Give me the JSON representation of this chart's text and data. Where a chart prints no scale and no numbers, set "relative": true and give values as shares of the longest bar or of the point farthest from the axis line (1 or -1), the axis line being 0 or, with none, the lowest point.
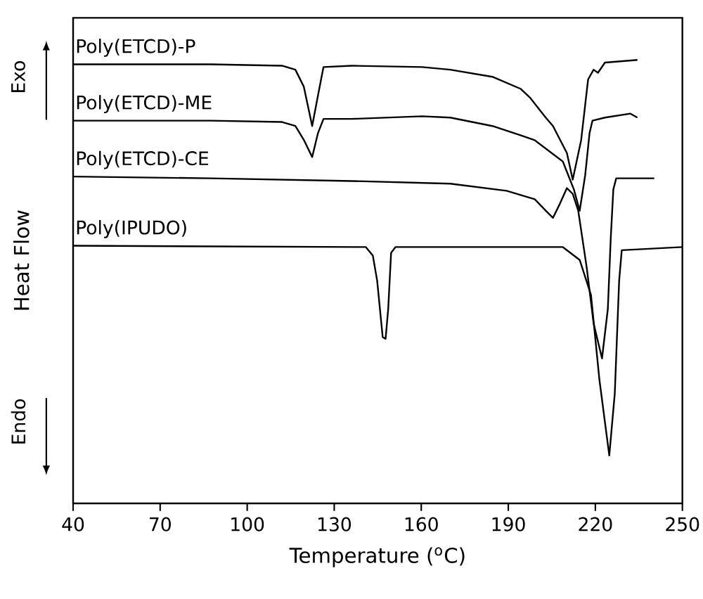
{
  "chart_data": {
    "type": "line",
    "xlabel": "Temperature ($^{o}$C)",
    "ylabel": "Heat Flow",
    "relative": true,
    "xlim": [
      40,
      250
    ],
    "xticks": [
      40,
      70,
      100,
      130,
      160,
      190,
      220,
      250
    ],
    "annotations": [
      "Exo",
      "Endo"
    ],
    "series": [
      {
        "name": "Poly(ETCD)-P",
        "color": "#000000",
        "x": [
          40,
          87.5,
          112,
          116.6,
          119.5,
          122.4,
          124.4,
          126.3,
          136,
          160.3,
          170,
          184.5,
          194.2,
          197.6,
          202.9,
          205.4,
          210.2,
          212.2,
          215.1,
          217.5,
          219.4,
          220.9,
          223.3,
          234.5
        ],
        "values": [
          0.99,
          0.99,
          0.987,
          0.978,
          0.94,
          0.851,
          0.92,
          0.984,
          0.987,
          0.984,
          0.978,
          0.962,
          0.935,
          0.914,
          0.87,
          0.851,
          0.79,
          0.73,
          0.819,
          0.956,
          0.978,
          0.971,
          0.994,
          1.0
        ]
      },
      {
        "name": "Poly(ETCD)-ME",
        "color": "#000000",
        "x": [
          40,
          87.5,
          112,
          116.6,
          119.5,
          122.4,
          124.4,
          126.3,
          136,
          160.3,
          170,
          184.5,
          194.2,
          199.1,
          208.8,
          212.6,
          214.6,
          216.5,
          218,
          219,
          223.3,
          232,
          234.5
        ],
        "values": [
          0.863,
          0.863,
          0.86,
          0.851,
          0.82,
          0.781,
          0.835,
          0.867,
          0.867,
          0.873,
          0.87,
          0.851,
          0.83,
          0.819,
          0.771,
          0.708,
          0.66,
          0.74,
          0.835,
          0.863,
          0.87,
          0.879,
          0.87
        ]
      },
      {
        "name": "Poly(ETCD)-CE",
        "color": "#000000",
        "x": [
          40,
          87.5,
          136,
          170,
          189.4,
          199.1,
          202.9,
          205.4,
          207.8,
          210.2,
          212.2,
          214.1,
          217,
          219.4,
          222.3,
          224.3,
          225.3,
          226.2,
          227.2,
          240.3
        ],
        "values": [
          0.737,
          0.733,
          0.727,
          0.721,
          0.705,
          0.686,
          0.66,
          0.644,
          0.676,
          0.711,
          0.698,
          0.66,
          0.533,
          0.406,
          0.327,
          0.438,
          0.597,
          0.708,
          0.733,
          0.733
        ]
      },
      {
        "name": "Poly(IPUDO)",
        "color": "#000000",
        "x": [
          40,
          140.9,
          143.3,
          144.8,
          146.7,
          147.7,
          148.6,
          149.6,
          151.1,
          208.8,
          214.6,
          218.5,
          221.4,
          224.8,
          226.7,
          228.2,
          229.1,
          250
        ],
        "values": [
          0.581,
          0.578,
          0.559,
          0.502,
          0.375,
          0.371,
          0.438,
          0.565,
          0.578,
          0.578,
          0.549,
          0.47,
          0.279,
          0.108,
          0.248,
          0.502,
          0.571,
          0.578
        ]
      }
    ]
  }
}
